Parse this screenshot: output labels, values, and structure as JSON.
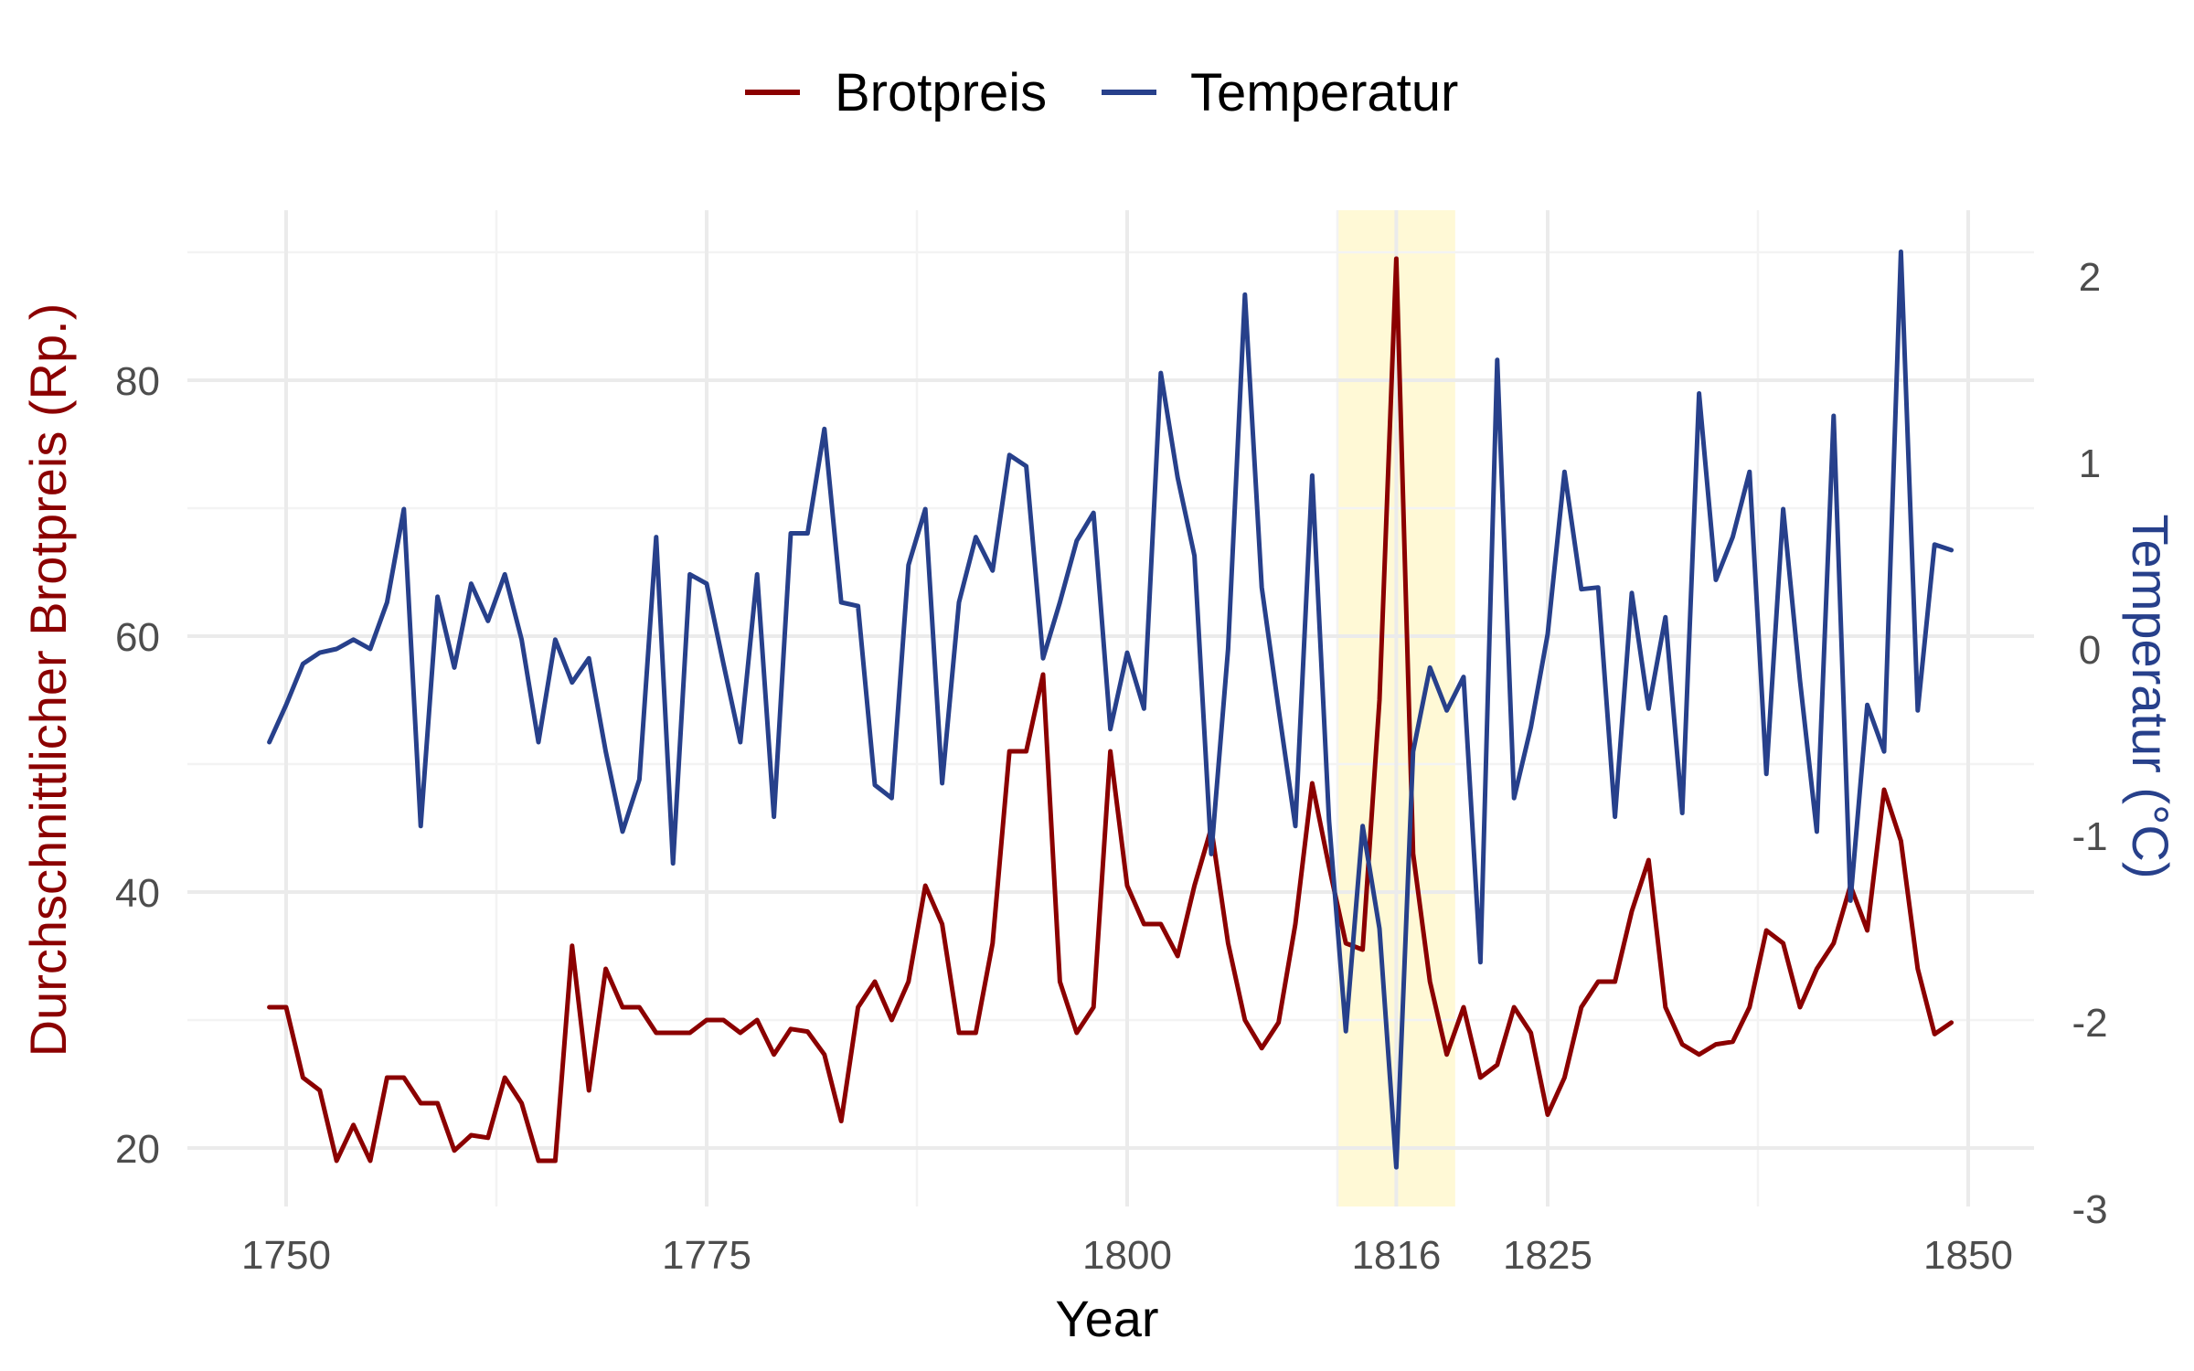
{
  "chart_data": {
    "type": "line",
    "legend": {
      "position": "top",
      "entries": [
        "Brotpreis",
        "Temperatur"
      ]
    },
    "x": {
      "label": "Year",
      "range": [
        1744,
        1852
      ],
      "ticks": [
        1750,
        1775,
        1800,
        1816,
        1825,
        1850
      ],
      "minor_grid": [
        1762.5,
        1787.5,
        1812.5,
        1837.5
      ]
    },
    "y_left": {
      "label": "Durchschnittlicher Brotpreis (Rp.)",
      "range": [
        15.5,
        92
      ],
      "ticks": [
        20,
        40,
        60,
        80
      ],
      "minor_grid": [
        30,
        50,
        70,
        90
      ],
      "color": "#8b0000"
    },
    "y_right": {
      "label": "Temperatur (°C)",
      "range": [
        -3,
        2.4
      ],
      "ticks": [
        2,
        1,
        0,
        -1,
        -2,
        -3
      ],
      "tick_labels": [
        "2",
        "1",
        "0",
        "-1",
        "-2",
        "-3"
      ],
      "color": "#27408b"
    },
    "highlight": {
      "from": 1812.5,
      "to": 1819.5,
      "color": "#fff9d6"
    },
    "series": [
      {
        "name": "Brotpreis",
        "axis": "left",
        "color": "#8b0000",
        "x": [
          1749,
          1750,
          1751,
          1752,
          1753,
          1754,
          1755,
          1756,
          1757,
          1758,
          1759,
          1760,
          1761,
          1762,
          1763,
          1764,
          1765,
          1766,
          1767,
          1768,
          1769,
          1770,
          1771,
          1772,
          1773,
          1774,
          1775,
          1776,
          1777,
          1778,
          1779,
          1780,
          1781,
          1782,
          1783,
          1784,
          1785,
          1786,
          1787,
          1788,
          1789,
          1790,
          1791,
          1792,
          1793,
          1794,
          1795,
          1796,
          1797,
          1798,
          1799,
          1800,
          1801,
          1802,
          1803,
          1804,
          1805,
          1806,
          1807,
          1808,
          1809,
          1810,
          1811,
          1812,
          1813,
          1814,
          1815,
          1816,
          1817,
          1818,
          1819,
          1820,
          1821,
          1822,
          1823,
          1824,
          1825,
          1826,
          1827,
          1828,
          1829,
          1830,
          1831,
          1832,
          1833,
          1834,
          1835,
          1836,
          1837,
          1838,
          1839,
          1840,
          1841,
          1842,
          1843,
          1844,
          1845,
          1846,
          1847,
          1848,
          1849
        ],
        "values": [
          31,
          31,
          25.5,
          24.5,
          19,
          21.8,
          19,
          25.5,
          25.5,
          23.5,
          23.5,
          19.8,
          21,
          20.8,
          25.5,
          23.5,
          19,
          19,
          35.8,
          24.5,
          34,
          31,
          31,
          29,
          29,
          29,
          30,
          30,
          29,
          30,
          27.3,
          29.3,
          29.1,
          27.3,
          22.1,
          31,
          33,
          30,
          33,
          40.5,
          37.5,
          29,
          29,
          36,
          51,
          51,
          57,
          33,
          29,
          31,
          51,
          40.5,
          37.5,
          37.5,
          35,
          40.5,
          45,
          36,
          30,
          27.8,
          29.8,
          37.5,
          48.5,
          42,
          36,
          35.5,
          55,
          89.5,
          43,
          33,
          27.3,
          31,
          25.5,
          26.5,
          31,
          29,
          22.6,
          25.5,
          31,
          33,
          33,
          38.5,
          42.5,
          31,
          28.1,
          27.3,
          28.1,
          28.3,
          31,
          37,
          36,
          31,
          34,
          36,
          40.5,
          37,
          48,
          44,
          34,
          28.9,
          29.8
        ]
      },
      {
        "name": "Temperatur",
        "axis": "right",
        "color": "#27408b",
        "x": [
          1749,
          1750,
          1751,
          1752,
          1753,
          1754,
          1755,
          1756,
          1757,
          1758,
          1759,
          1760,
          1761,
          1762,
          1763,
          1764,
          1765,
          1766,
          1767,
          1768,
          1769,
          1770,
          1771,
          1772,
          1773,
          1774,
          1775,
          1776,
          1777,
          1778,
          1779,
          1780,
          1781,
          1782,
          1783,
          1784,
          1785,
          1786,
          1787,
          1788,
          1789,
          1790,
          1791,
          1792,
          1793,
          1794,
          1795,
          1796,
          1797,
          1798,
          1799,
          1800,
          1801,
          1802,
          1803,
          1804,
          1805,
          1806,
          1807,
          1808,
          1809,
          1810,
          1811,
          1812,
          1813,
          1814,
          1815,
          1816,
          1817,
          1818,
          1819,
          1820,
          1821,
          1822,
          1823,
          1824,
          1825,
          1826,
          1827,
          1828,
          1829,
          1830,
          1831,
          1832,
          1833,
          1834,
          1835,
          1836,
          1837,
          1838,
          1839,
          1840,
          1841,
          1842,
          1843,
          1844,
          1845,
          1846,
          1847,
          1848,
          1849
        ],
        "values": [
          -0.5,
          -0.3,
          -0.08,
          -0.02,
          0,
          0.05,
          0,
          0.25,
          0.75,
          -0.95,
          0.28,
          -0.1,
          0.35,
          0.15,
          0.4,
          0.05,
          -0.5,
          0.05,
          -0.18,
          -0.05,
          -0.55,
          -0.98,
          -0.7,
          0.6,
          -1.15,
          0.4,
          0.35,
          -0.08,
          -0.5,
          0.4,
          -0.9,
          0.62,
          0.62,
          1.18,
          0.25,
          0.23,
          -0.73,
          -0.8,
          0.45,
          0.75,
          -0.72,
          0.25,
          0.6,
          0.42,
          1.04,
          0.98,
          -0.05,
          0.25,
          0.58,
          0.73,
          -0.43,
          -0.02,
          -0.32,
          1.48,
          0.92,
          0.5,
          -1.1,
          0.0,
          1.9,
          0.33,
          -0.32,
          -0.95,
          0.93,
          -0.92,
          -2.05,
          -0.95,
          -1.5,
          -2.78,
          -0.55,
          -0.1,
          -0.33,
          -0.15,
          -1.68,
          1.55,
          -0.8,
          -0.42,
          0.08,
          0.95,
          0.32,
          0.33,
          -0.9,
          0.3,
          -0.32,
          0.17,
          -0.88,
          1.37,
          0.37,
          0.6,
          0.95,
          -0.67,
          0.75,
          -0.17,
          -0.98,
          1.25,
          -1.35,
          -0.3,
          -0.55,
          2.13,
          -0.33,
          0.56,
          0.53
        ]
      }
    ]
  }
}
